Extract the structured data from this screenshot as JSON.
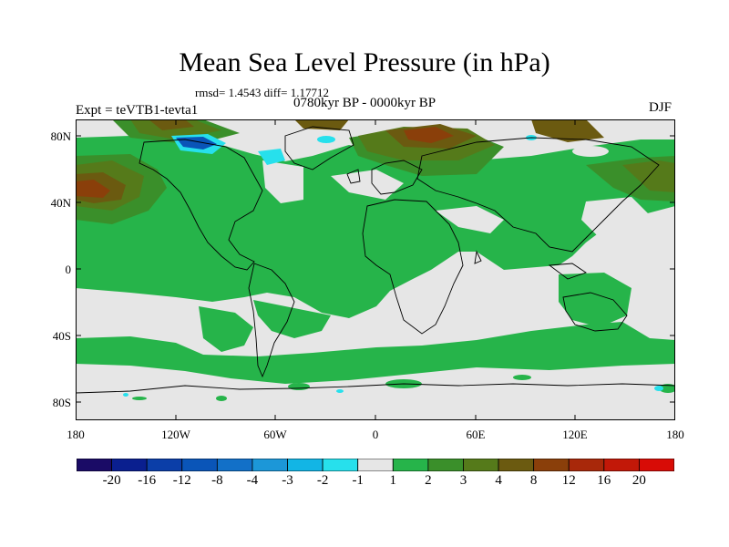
{
  "title": "Mean Sea Level Pressure (in hPa)",
  "stats": "rmsd= 1.4543 diff= 1.17712",
  "period": "0780kyr BP - 0000kyr BP",
  "experiment": "Expt = teVTB1-tevta1",
  "season": "DJF",
  "lat_labels": [
    "80N",
    "40N",
    "0",
    "40S",
    "80S"
  ],
  "lon_labels": [
    "180",
    "120W",
    "60W",
    "0",
    "60E",
    "120E",
    "180"
  ],
  "colorbar": {
    "labels": [
      "-20",
      "-16",
      "-12",
      "-8",
      "-4",
      "-3",
      "-2",
      "-1",
      "1",
      "2",
      "3",
      "4",
      "8",
      "12",
      "16",
      "20"
    ],
    "colors": [
      "#1a0b66",
      "#0a1f8f",
      "#0b3ea8",
      "#0a55b8",
      "#1270c8",
      "#1c97d8",
      "#12b5e5",
      "#27e0ec",
      "#e6e6e6",
      "#26b44a",
      "#3a8f2a",
      "#557a1a",
      "#6b5a10",
      "#8a3f0a",
      "#a8280a",
      "#c21808",
      "#d80c06"
    ]
  },
  "colors": {
    "neutral": "#e6e6e6",
    "pos1": "#26b44a",
    "pos2": "#3a8f2a",
    "pos3": "#557a1a",
    "pos4": "#6b5a10",
    "neg1": "#27e0ec",
    "neg3": "#0a55b8"
  }
}
